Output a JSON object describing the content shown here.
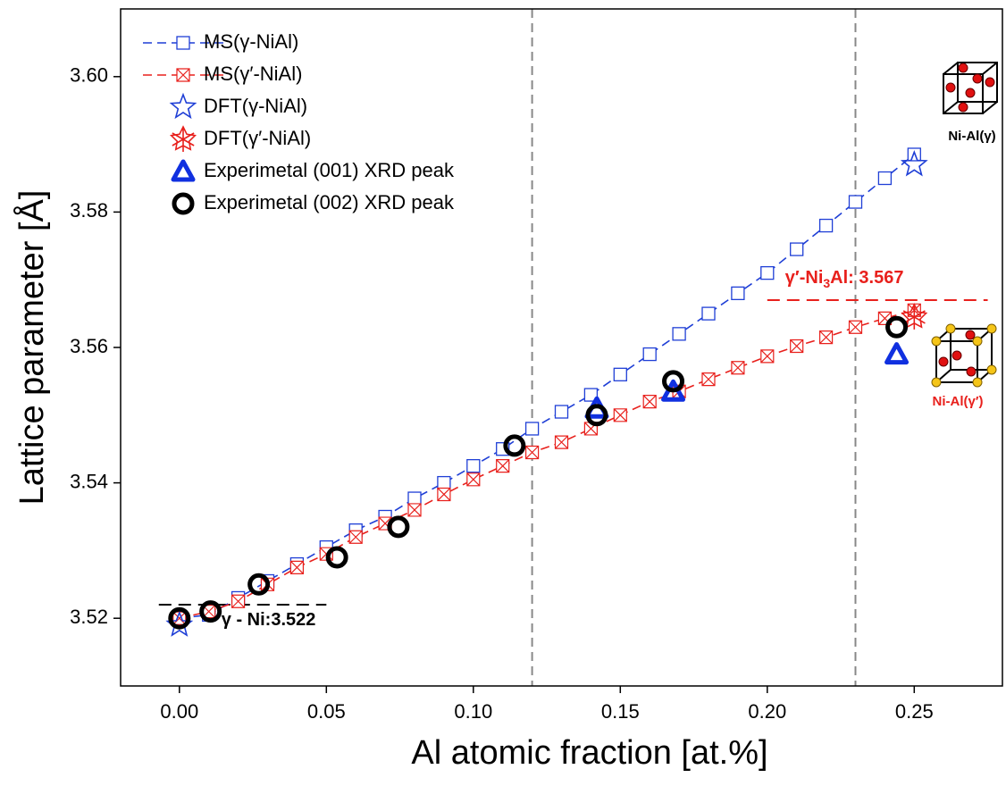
{
  "chart_data": {
    "type": "scatter",
    "x_label": "Al atomic fraction [at.%]",
    "y_label": "Lattice parameter [Å]",
    "xlim": [
      -0.02,
      0.28
    ],
    "ylim": [
      3.51,
      3.61
    ],
    "xticks": [
      {
        "value": 0,
        "label": "0.00"
      },
      0.05,
      {
        "value": 0.1,
        "label": "0.10"
      },
      0.15,
      {
        "value": 0.2,
        "label": "0.20"
      },
      0.25
    ],
    "yticks": [
      3.52,
      3.54,
      3.56,
      3.58,
      {
        "value": 3.6,
        "label": "3.60"
      }
    ],
    "series": [
      {
        "name": "MS(γ-NiAl)",
        "color": "#1f3fd6",
        "marker": "square",
        "line": true,
        "x": [
          0,
          0.01,
          0.02,
          0.03,
          0.04,
          0.05,
          0.06,
          0.07,
          0.08,
          0.09,
          0.1,
          0.11,
          0.12,
          0.13,
          0.14,
          0.15,
          0.16,
          0.17,
          0.18,
          0.19,
          0.2,
          0.21,
          0.22,
          0.23,
          0.24,
          0.25
        ],
        "values": [
          3.52,
          3.5205,
          3.523,
          3.5255,
          3.528,
          3.5305,
          3.533,
          3.535,
          3.5377,
          3.54,
          3.5425,
          3.545,
          3.548,
          3.5505,
          3.553,
          3.556,
          3.559,
          3.562,
          3.565,
          3.568,
          3.571,
          3.5745,
          3.578,
          3.5815,
          3.585,
          3.5885
        ]
      },
      {
        "name": "MS(γ′-NiAl)",
        "color": "#e8201c",
        "marker": "crossed-square",
        "line": true,
        "x": [
          0,
          0.01,
          0.02,
          0.03,
          0.04,
          0.05,
          0.06,
          0.07,
          0.08,
          0.09,
          0.1,
          0.11,
          0.12,
          0.13,
          0.14,
          0.15,
          0.16,
          0.17,
          0.18,
          0.19,
          0.2,
          0.21,
          0.22,
          0.23,
          0.24,
          0.25
        ],
        "values": [
          3.52,
          3.521,
          3.5225,
          3.525,
          3.5275,
          3.5295,
          3.532,
          3.534,
          3.536,
          3.5383,
          3.5405,
          3.5425,
          3.5445,
          3.546,
          3.548,
          3.55,
          3.552,
          3.5535,
          3.5553,
          3.557,
          3.5587,
          3.5602,
          3.5615,
          3.563,
          3.5643,
          3.5655
        ]
      },
      {
        "name": "DFT(γ-NiAl)",
        "color": "#1f3fd6",
        "marker": "star",
        "line": false,
        "x": [
          0,
          0.25
        ],
        "values": [
          3.519,
          3.587
        ]
      },
      {
        "name": "DFT(γ′-NiAl)",
        "color": "#e8201c",
        "marker": "asterisk",
        "line": false,
        "x": [
          0.25
        ],
        "values": [
          3.5645
        ]
      },
      {
        "name": "Experimetal (001) XRD peak",
        "color": "#1030e0",
        "marker": "triangle",
        "line": false,
        "x": [
          0.142,
          0.168,
          0.244
        ],
        "values": [
          3.551,
          3.5535,
          3.559
        ]
      },
      {
        "name": "Experimetal (002) XRD peak",
        "color": "#000000",
        "marker": "circle",
        "line": false,
        "x": [
          0,
          0.0106,
          0.027,
          0.0536,
          0.0745,
          0.114,
          0.142,
          0.168,
          0.244
        ],
        "values": [
          3.52,
          3.521,
          3.525,
          3.529,
          3.5335,
          3.5455,
          3.55,
          3.555,
          3.563
        ]
      }
    ],
    "vertical_lines": [
      0.12,
      0.23
    ],
    "reference_lines": [
      {
        "value": 3.522,
        "xrange": [
          -0.007,
          0.05
        ],
        "color": "#000000",
        "label_parts": [
          "γ - Ni:3.522"
        ]
      },
      {
        "value": 3.567,
        "xrange": [
          0.2,
          0.275
        ],
        "color": "#e8201c",
        "label_parts": [
          "γ′-Ni",
          "3",
          "Al: 3.567"
        ]
      }
    ],
    "structure_labels": [
      "Ni-Al(γ)",
      "Ni-Al(γ′)"
    ]
  }
}
